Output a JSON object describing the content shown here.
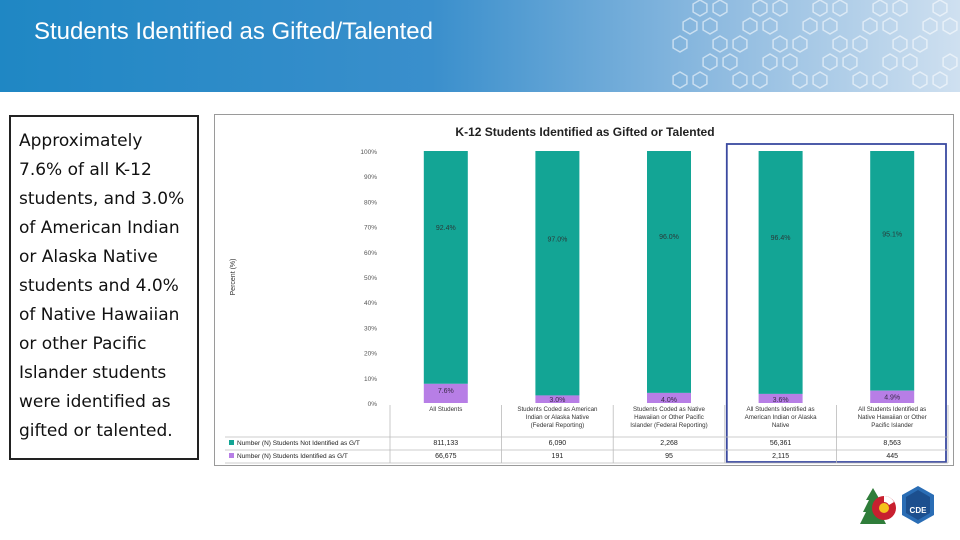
{
  "header": {
    "title": "Students Identified as Gifted/Talented"
  },
  "left_text": "Approximately 7.6% of all K-12 students, and 3.0% of American Indian or Alaska Native students and 4.0% of Native Hawaiian or other Pacific Islander students were identified as gifted or talented.",
  "colors": {
    "header": "#1f87c4",
    "not_identified": "#13a595",
    "identified": "#b77ee6",
    "highlight": "#3b4aa0"
  },
  "logo": {
    "text": "CDE",
    "name": "cde-logo-icon"
  },
  "chart_data": {
    "type": "bar",
    "stacked": true,
    "title": "K-12 Students Identified as Gifted or Talented",
    "ylabel": "Percent (%)",
    "ylim": [
      0,
      100
    ],
    "yticks": [
      "0%",
      "10%",
      "20%",
      "30%",
      "40%",
      "50%",
      "60%",
      "70%",
      "80%",
      "90%",
      "100%"
    ],
    "categories": [
      [
        "All Students"
      ],
      [
        "Students Coded as American",
        "Indian or Alaska Native",
        "(Federal Reporting)"
      ],
      [
        "Students Coded as Native",
        "Hawaiian or Other Pacific",
        "Islander (Federal Reporting)"
      ],
      [
        "All Students Identified as",
        "American Indian or Alaska",
        "Native"
      ],
      [
        "All Students Identified as",
        "Native Hawaiian or Other",
        "Pacific Islander"
      ]
    ],
    "series": [
      {
        "name": "Number (N) Students Not Identified as G/T",
        "values": [
          92.4,
          97.0,
          96.0,
          96.4,
          95.1
        ],
        "labels": [
          "92.4%",
          "97.0%",
          "96.0%",
          "96.4%",
          "95.1%"
        ],
        "table": [
          "811,133",
          "6,090",
          "2,268",
          "56,361",
          "8,563"
        ]
      },
      {
        "name": "Number (N) Students Identified as G/T",
        "values": [
          7.6,
          3.0,
          4.0,
          3.6,
          4.9
        ],
        "labels": [
          "7.6%",
          "3.0%",
          "4.0%",
          "3.6%",
          "4.9%"
        ],
        "table": [
          "66,675",
          "191",
          "95",
          "2,115",
          "445"
        ]
      }
    ],
    "grid": false,
    "legend": "table-below"
  }
}
